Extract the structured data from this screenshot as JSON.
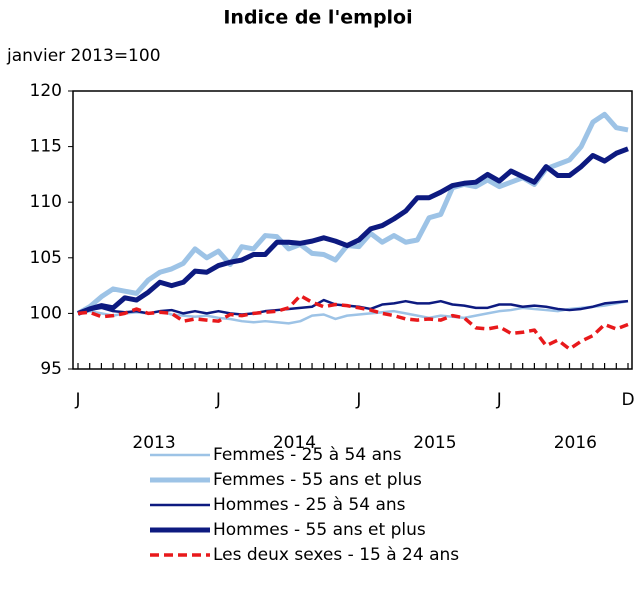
{
  "chart_data": {
    "type": "line",
    "title": "Indice de l'emploi",
    "subtitle": "janvier 2013=100",
    "categories": [
      "J",
      null,
      null,
      null,
      null,
      null,
      null,
      null,
      null,
      null,
      null,
      null,
      "J",
      null,
      null,
      null,
      null,
      null,
      null,
      null,
      null,
      null,
      null,
      null,
      "J",
      null,
      null,
      null,
      null,
      null,
      null,
      null,
      null,
      null,
      null,
      null,
      "J",
      null,
      null,
      null,
      null,
      null,
      null,
      null,
      null,
      null,
      null,
      "D"
    ],
    "year_labels": [
      "2013",
      "2014",
      "2015",
      "2016"
    ],
    "ylim": [
      95,
      120
    ],
    "yticks": [
      95,
      100,
      105,
      110,
      115,
      120
    ],
    "series": [
      {
        "name": "Femmes - 25 à 54 ans",
        "color": "#9dc3e6",
        "line_width": 2.5,
        "dashed": false,
        "values": [
          100,
          100.2,
          100,
          99.8,
          100,
          100.1,
          100,
          100.2,
          99.9,
          99.8,
          99.7,
          99.8,
          99.6,
          99.5,
          99.3,
          99.2,
          99.3,
          99.2,
          99.1,
          99.3,
          99.8,
          99.9,
          99.5,
          99.8,
          99.9,
          100,
          100.1,
          100.2,
          100,
          99.8,
          99.6,
          99.8,
          99.7,
          99.6,
          99.8,
          100,
          100.2,
          100.3,
          100.5,
          100.4,
          100.3,
          100.2,
          100.4,
          100.5,
          100.6,
          100.7,
          100.9,
          101.1
        ]
      },
      {
        "name": "Femmes - 55 ans et plus",
        "color": "#9dc3e6",
        "line_width": 5,
        "dashed": false,
        "values": [
          100,
          100.6,
          101.5,
          102.2,
          102,
          101.8,
          103,
          103.7,
          104,
          104.5,
          105.8,
          105,
          105.6,
          104.4,
          106,
          105.8,
          107,
          106.9,
          105.8,
          106.2,
          105.4,
          105.3,
          104.8,
          106.1,
          106,
          107.2,
          106.4,
          107,
          106.4,
          106.6,
          108.6,
          108.9,
          111.3,
          111.6,
          111.4,
          112,
          111.4,
          111.8,
          112.2,
          111.6,
          113,
          113.4,
          113.8,
          115,
          117.2,
          117.9,
          116.7,
          116.5
        ]
      },
      {
        "name": "Hommes - 25 à 54 ans",
        "color": "#0d1a80",
        "line_width": 2.5,
        "dashed": false,
        "values": [
          100,
          100.3,
          100.5,
          100.2,
          100.1,
          100.2,
          100,
          100.2,
          100.3,
          100,
          100.2,
          100,
          100.2,
          100,
          99.9,
          100,
          100.2,
          100.3,
          100.4,
          100.5,
          100.6,
          101.2,
          100.8,
          100.7,
          100.6,
          100.4,
          100.8,
          100.9,
          101.1,
          100.9,
          100.9,
          101.1,
          100.8,
          100.7,
          100.5,
          100.5,
          100.8,
          100.8,
          100.6,
          100.7,
          100.6,
          100.4,
          100.3,
          100.4,
          100.6,
          100.9,
          101,
          101.1
        ]
      },
      {
        "name": "Hommes - 55 ans et plus",
        "color": "#0d1a80",
        "line_width": 5,
        "dashed": false,
        "values": [
          100,
          100.4,
          100.7,
          100.5,
          101.4,
          101.2,
          101.9,
          102.8,
          102.5,
          102.8,
          103.8,
          103.7,
          104.3,
          104.6,
          104.8,
          105.3,
          105.3,
          106.4,
          106.4,
          106.3,
          106.5,
          106.8,
          106.5,
          106.1,
          106.6,
          107.6,
          107.9,
          108.5,
          109.2,
          110.4,
          110.4,
          110.9,
          111.5,
          111.7,
          111.8,
          112.5,
          111.9,
          112.8,
          112.3,
          111.8,
          113.2,
          112.4,
          112.4,
          113.2,
          114.2,
          113.7,
          114.4,
          114.8
        ]
      },
      {
        "name": "Les deux sexes - 15 à 24 ans",
        "color": "#e8191b",
        "line_width": 3.5,
        "dashed": true,
        "values": [
          100,
          100.1,
          99.7,
          99.8,
          100,
          100.4,
          100,
          100.1,
          100,
          99.3,
          99.5,
          99.4,
          99.3,
          99.9,
          99.8,
          100,
          100.1,
          100.2,
          100.5,
          101.6,
          101,
          100.6,
          100.8,
          100.7,
          100.5,
          100.3,
          100,
          99.8,
          99.5,
          99.4,
          99.5,
          99.4,
          99.8,
          99.6,
          98.7,
          98.6,
          98.8,
          98.2,
          98.3,
          98.5,
          97.1,
          97.6,
          96.8,
          97.5,
          98,
          99,
          98.6,
          99
        ]
      }
    ]
  }
}
